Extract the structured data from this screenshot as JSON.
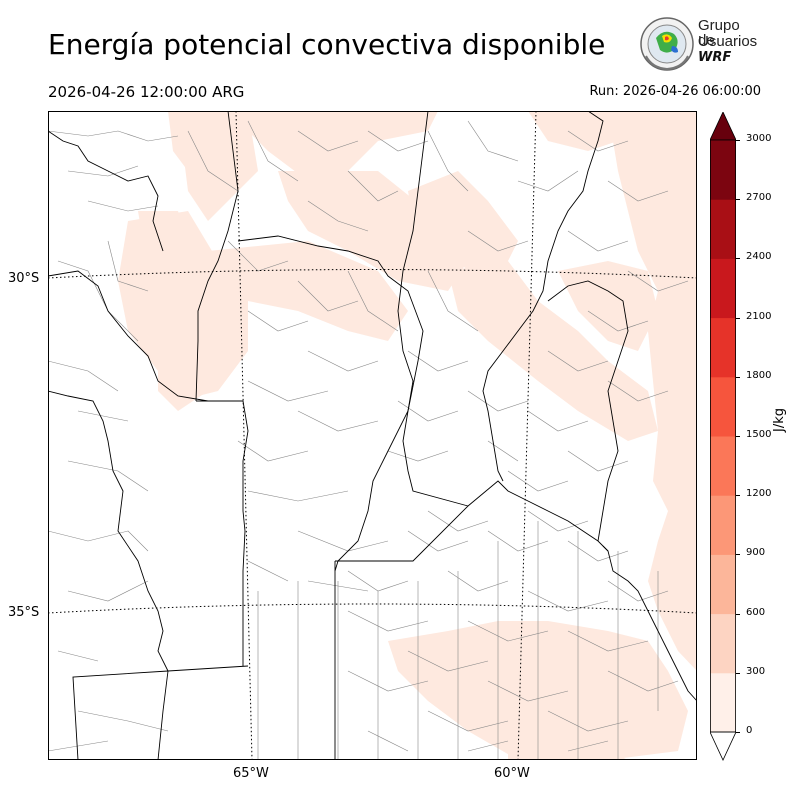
{
  "header": {
    "title": "Energía potencial convectiva disponible",
    "valid_time": "2026-04-26 12:00:00 ARG",
    "run_time": "Run: 2026-04-26 06:00:00"
  },
  "logo": {
    "line1": "Grupo de",
    "line2": "Usuarios",
    "line3": "WRF"
  },
  "map": {
    "lat_labels": [
      "30°S",
      "35°S"
    ],
    "lon_labels": [
      "65°W",
      "60°W"
    ],
    "land_color": "#ffffff",
    "cape_low_color": "#fee9df",
    "border_color": "#000000",
    "dept_color": "#888888"
  },
  "colorbar": {
    "unit": "J/kg",
    "ticks": [
      "0",
      "300",
      "600",
      "900",
      "1200",
      "1500",
      "1800",
      "2100",
      "2400",
      "2700",
      "3000"
    ],
    "colors": [
      "#fff0e9",
      "#fdd4c2",
      "#fcb69a",
      "#fc9777",
      "#fb7758",
      "#f6553d",
      "#e63329",
      "#c9181d",
      "#a90f15",
      "#7c0510"
    ],
    "extend_color": "#67000d"
  }
}
